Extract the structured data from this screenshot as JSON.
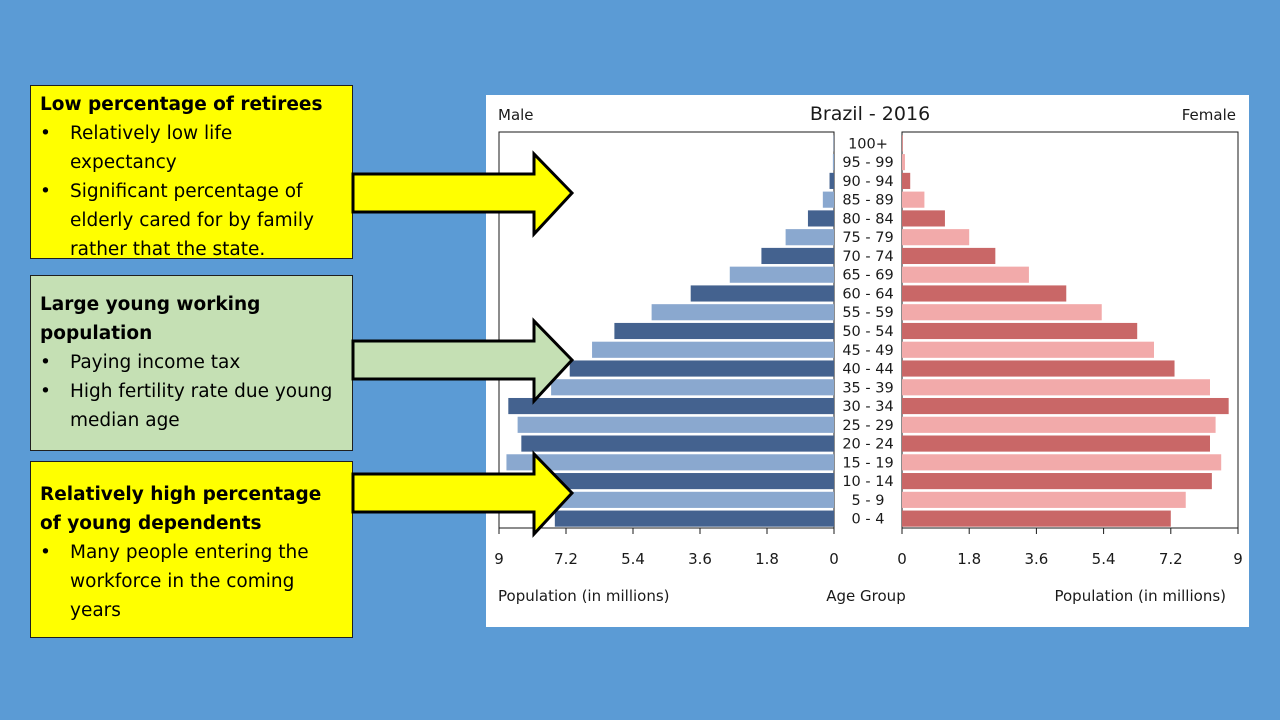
{
  "boxes": [
    {
      "title": "Low percentage of retirees",
      "bullets": [
        "Relatively low life expectancy",
        "Significant percentage of elderly cared for by family rather that the state."
      ]
    },
    {
      "title": "Large young working population",
      "bullets": [
        "Paying income tax",
        "High fertility rate due young median age"
      ]
    },
    {
      "title": "Relatively high percentage of young dependents",
      "bullets": [
        "Many people entering the workforce in the coming years"
      ]
    }
  ],
  "bullet_char": "•",
  "colors": {
    "background": "#5b9bd5",
    "box_yellow": "#ffff00",
    "box_green": "#c5e0b4",
    "male_dark": "#44628f",
    "male_light": "#8aa8cf",
    "female_dark": "#c96767",
    "female_light": "#f2aaaa"
  },
  "chart_data": {
    "type": "bar",
    "title": "Brazil - 2016",
    "left_label": "Male",
    "right_label": "Female",
    "center_label": "Age Group",
    "xlabel_left": "Population (in millions)",
    "xlabel_right": "Population (in millions)",
    "xlim": [
      0,
      9
    ],
    "ticks_left": [
      "9",
      "7.2",
      "5.4",
      "3.6",
      "1.8",
      "0"
    ],
    "ticks_right": [
      "0",
      "1.8",
      "3.6",
      "5.4",
      "7.2",
      "9"
    ],
    "tick_values": [
      0,
      1.8,
      3.6,
      5.4,
      7.2,
      9
    ],
    "categories": [
      "100+",
      "95 - 99",
      "90 - 94",
      "85 - 89",
      "80 - 84",
      "75 - 79",
      "70 - 74",
      "65 - 69",
      "60 - 64",
      "55 - 59",
      "50 - 54",
      "45 - 49",
      "40 - 44",
      "35 - 39",
      "30 - 34",
      "25 - 29",
      "20 - 24",
      "15 - 19",
      "10 - 14",
      "5 - 9",
      "0 - 4"
    ],
    "series": [
      {
        "name": "Male",
        "values": [
          0.01,
          0.03,
          0.12,
          0.3,
          0.7,
          1.3,
          1.95,
          2.8,
          3.85,
          4.9,
          5.9,
          6.5,
          7.1,
          7.6,
          8.75,
          8.5,
          8.4,
          8.8,
          8.5,
          7.8,
          7.5
        ]
      },
      {
        "name": "Female",
        "values": [
          0.02,
          0.08,
          0.22,
          0.6,
          1.15,
          1.8,
          2.5,
          3.4,
          4.4,
          5.35,
          6.3,
          6.75,
          7.3,
          8.25,
          8.75,
          8.4,
          8.25,
          8.55,
          8.3,
          7.6,
          7.2
        ]
      }
    ]
  }
}
